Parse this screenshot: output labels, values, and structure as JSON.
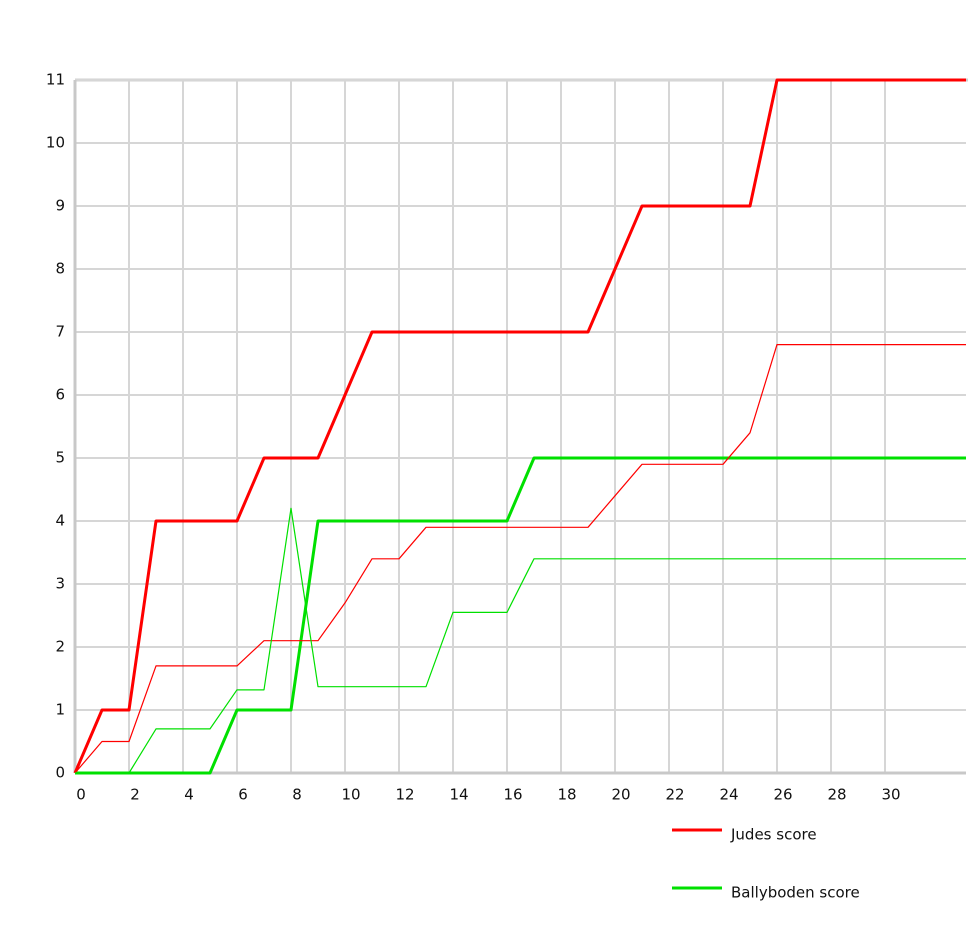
{
  "chart_data": {
    "type": "line",
    "x": [
      0,
      1,
      2,
      3,
      4,
      5,
      6,
      7,
      8,
      9,
      10,
      11,
      12,
      13,
      14,
      15,
      16,
      17,
      18,
      19,
      20,
      21,
      22,
      23,
      24,
      25,
      26,
      27,
      28,
      29,
      30,
      31,
      32,
      33
    ],
    "series": [
      {
        "name": "Judes score",
        "color": "#ff0000",
        "width": 3,
        "values": [
          0,
          1,
          1,
          4,
          4,
          4,
          4,
          5,
          5,
          5,
          6,
          7,
          7,
          7,
          7,
          7,
          7,
          7,
          7,
          7,
          8,
          9,
          9,
          9,
          9,
          9,
          11,
          11,
          11,
          11,
          11,
          11,
          11,
          11
        ]
      },
      {
        "name": "Ballyboden score",
        "color": "#00e000",
        "width": 3,
        "values": [
          0,
          0,
          0,
          0,
          0,
          0,
          1,
          1,
          1,
          4,
          4,
          4,
          4,
          4,
          4,
          4,
          4,
          5,
          5,
          5,
          5,
          5,
          5,
          5,
          5,
          5,
          5,
          5,
          5,
          5,
          5,
          5,
          5,
          5
        ]
      },
      {
        "color": "#ff0000",
        "width": 1.2,
        "values": [
          0,
          0.5,
          0.5,
          1.7,
          1.7,
          1.7,
          1.7,
          2.1,
          2.1,
          2.1,
          2.7,
          3.4,
          3.4,
          3.9,
          3.9,
          3.9,
          3.9,
          3.9,
          3.9,
          3.9,
          4.4,
          4.9,
          4.9,
          4.9,
          4.9,
          5.4,
          6.8,
          6.8,
          6.8,
          6.8,
          6.8,
          6.8,
          6.8,
          6.8
        ]
      },
      {
        "color": "#00e000",
        "width": 1.2,
        "values": [
          0,
          0,
          0,
          0.7,
          0.7,
          0.7,
          1.32,
          1.32,
          4.2,
          1.37,
          1.37,
          1.37,
          1.37,
          1.37,
          2.55,
          2.55,
          2.55,
          3.4,
          3.4,
          3.4,
          3.4,
          3.4,
          3.4,
          3.4,
          3.4,
          3.4,
          3.4,
          3.4,
          3.4,
          3.4,
          3.4,
          3.4,
          3.4,
          3.4
        ]
      }
    ],
    "xlim": [
      0,
      33
    ],
    "xticks": [
      0,
      2,
      4,
      6,
      8,
      10,
      12,
      14,
      16,
      18,
      20,
      22,
      24,
      26,
      28,
      30
    ],
    "ylim": [
      0,
      11
    ],
    "yticks": [
      0,
      1,
      2,
      3,
      4,
      5,
      6,
      7,
      8,
      9,
      10,
      11
    ],
    "grid": true
  }
}
